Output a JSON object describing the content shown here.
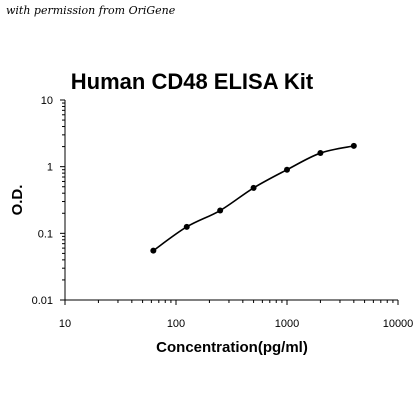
{
  "watermark": "with permission from OriGene",
  "chart_data": {
    "type": "line",
    "title": "Human CD48 ELISA Kit",
    "xlabel": "Concentration(pg/ml)",
    "ylabel": "O.D.",
    "xscale": "log",
    "yscale": "log",
    "xlim": [
      10,
      10000
    ],
    "ylim": [
      0.01,
      10
    ],
    "x_ticks": [
      "10",
      "100",
      "1000",
      "10000"
    ],
    "y_ticks": [
      "0.01",
      "0.1",
      "1",
      "10"
    ],
    "grid": false,
    "legend": "none",
    "colors": {
      "line": "#000000",
      "points": "#000000"
    },
    "series": [
      {
        "x": [
          62.5,
          125,
          250,
          500,
          1000,
          2000,
          4000
        ],
        "y": [
          0.055,
          0.125,
          0.22,
          0.48,
          0.9,
          1.6,
          2.05
        ]
      }
    ]
  }
}
